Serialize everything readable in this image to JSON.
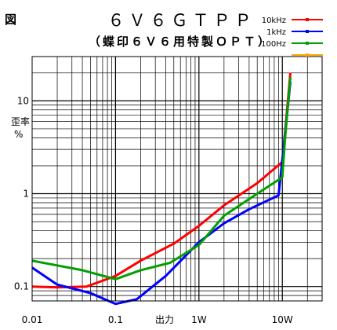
{
  "figure_label": "図",
  "chart_data": {
    "type": "line",
    "title": "６Ｖ６ＧＴＰＰ",
    "subtitle": "（蝶印６Ｖ６用特製ＯＰＴ）",
    "ylabel": [
      "歪率",
      "%"
    ],
    "xlabel": "出力",
    "x_scale": "log",
    "y_scale": "log",
    "xlim": [
      0.01,
      30
    ],
    "ylim": [
      0.07,
      30
    ],
    "x_ticks": [
      {
        "value": 0.01,
        "label": "0.01"
      },
      {
        "value": 0.1,
        "label": "0.1"
      },
      {
        "value": 1,
        "label": "1W"
      },
      {
        "value": 10,
        "label": "10W"
      }
    ],
    "y_ticks": [
      {
        "value": 0.1,
        "label": "0.1"
      },
      {
        "value": 1,
        "label": "1"
      },
      {
        "value": 10,
        "label": "10"
      }
    ],
    "grid": true,
    "legend_position": "top-right",
    "series": [
      {
        "name": "10kHz",
        "color": "#ff0000",
        "x": [
          0.01,
          0.02,
          0.045,
          0.1,
          0.2,
          0.5,
          1,
          2,
          5,
          10,
          11,
          12.5
        ],
        "y": [
          0.1,
          0.098,
          0.1,
          0.13,
          0.19,
          0.29,
          0.45,
          0.75,
          1.3,
          2.2,
          5.5,
          20
        ]
      },
      {
        "name": "1kHz",
        "color": "#0000ff",
        "x": [
          0.01,
          0.02,
          0.05,
          0.1,
          0.18,
          0.4,
          1,
          2,
          4,
          9,
          10.5,
          12.5
        ],
        "y": [
          0.16,
          0.105,
          0.085,
          0.065,
          0.073,
          0.13,
          0.3,
          0.48,
          0.68,
          0.96,
          3.5,
          16
        ]
      },
      {
        "name": "100Hz",
        "color": "#00a000",
        "x": [
          0.01,
          0.04,
          0.1,
          0.2,
          0.45,
          1,
          2,
          5,
          10,
          10.8,
          12.5
        ],
        "y": [
          0.19,
          0.15,
          0.12,
          0.15,
          0.18,
          0.28,
          0.58,
          1,
          1.5,
          4,
          18
        ]
      },
      {
        "name": "",
        "color": "#ffa500",
        "x": [],
        "y": []
      }
    ]
  }
}
